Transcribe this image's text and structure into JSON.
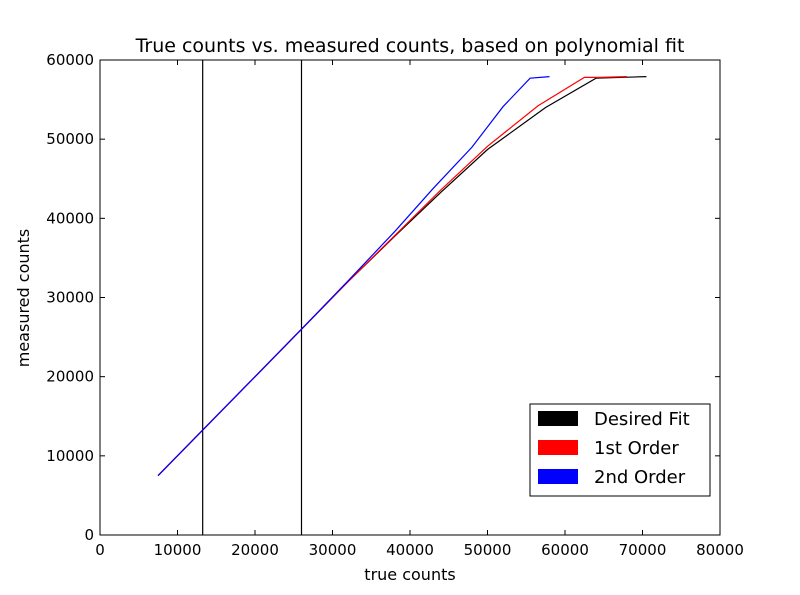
{
  "chart_data": {
    "type": "line",
    "title": "True counts vs. measured counts, based on polynomial fit",
    "xlabel": "true counts",
    "ylabel": "measured counts",
    "xlim": [
      0,
      80000
    ],
    "ylim": [
      0,
      60000
    ],
    "xticks": [
      0,
      10000,
      20000,
      30000,
      40000,
      50000,
      60000,
      70000,
      80000
    ],
    "yticks": [
      0,
      10000,
      20000,
      30000,
      40000,
      50000,
      60000
    ],
    "grid": false,
    "legend_position": "lower-right",
    "vlines": [
      13250,
      26000
    ],
    "series": [
      {
        "name": "Desired Fit",
        "color": "#000000",
        "points": [
          [
            7500,
            7500
          ],
          [
            13250,
            13250
          ],
          [
            26000,
            26000
          ],
          [
            32000,
            32000
          ],
          [
            38000,
            37700
          ],
          [
            44000,
            43300
          ],
          [
            50000,
            48700
          ],
          [
            57500,
            54000
          ],
          [
            64000,
            57700
          ],
          [
            70500,
            57900
          ]
        ]
      },
      {
        "name": "1st Order",
        "color": "#ff0000",
        "points": [
          [
            7500,
            7500
          ],
          [
            13250,
            13250
          ],
          [
            26000,
            26000
          ],
          [
            32000,
            32000
          ],
          [
            38000,
            37800
          ],
          [
            44000,
            43600
          ],
          [
            50000,
            49100
          ],
          [
            56500,
            54200
          ],
          [
            62500,
            57800
          ],
          [
            64500,
            57800
          ],
          [
            68000,
            57900
          ]
        ]
      },
      {
        "name": "2nd Order",
        "color": "#0000ff",
        "points": [
          [
            7500,
            7500
          ],
          [
            13250,
            13250
          ],
          [
            26000,
            26000
          ],
          [
            32000,
            32100
          ],
          [
            38000,
            38300
          ],
          [
            43000,
            43800
          ],
          [
            48000,
            49000
          ],
          [
            52000,
            54100
          ],
          [
            55500,
            57700
          ],
          [
            58000,
            57900
          ]
        ]
      }
    ]
  }
}
